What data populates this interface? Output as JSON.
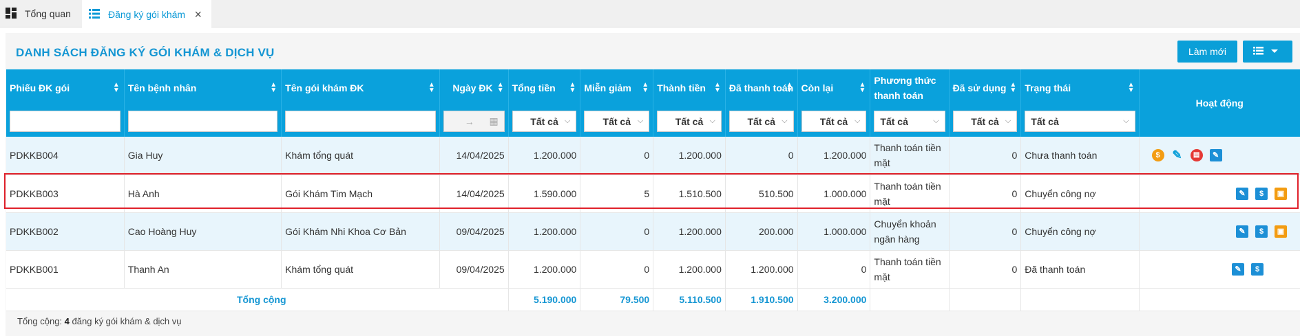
{
  "tabs": [
    {
      "label": "Tổng quan",
      "icon": "dashboard-icon"
    },
    {
      "label": "Đăng ký gói khám",
      "icon": "list-icon"
    }
  ],
  "page": {
    "title": "DANH SÁCH ĐĂNG KÝ GÓI KHÁM & DỊCH VỤ",
    "refresh_label": "Làm mới"
  },
  "table": {
    "columns": [
      "Phiếu ĐK gói",
      "Tên bệnh nhân",
      "Tên gói khám ĐK",
      "Ngày ĐK",
      "Tổng tiền",
      "Miễn giảm",
      "Thành tiền",
      "Đã thanh toán",
      "Còn lại",
      "Phương thức thanh toán",
      "Đã sử dụng",
      "Trạng thái",
      "Hoạt động"
    ],
    "filter_all": "Tất cả",
    "date_arrow": "→",
    "rows": [
      {
        "code": "PDKKB004",
        "patient": "Gia Huy",
        "package": "Khám tổng quát",
        "date": "14/04/2025",
        "total": "1.200.000",
        "discount": "0",
        "amount": "1.200.000",
        "paid": "0",
        "remaining": "1.200.000",
        "method": "Thanh toán tiền mặt",
        "used": "0",
        "status": "Chưa thanh toán"
      },
      {
        "code": "PDKKB003",
        "patient": "Hà Anh",
        "package": "Gói Khám Tim Mạch",
        "date": "14/04/2025",
        "total": "1.590.000",
        "discount": "5",
        "amount": "1.510.500",
        "paid": "510.500",
        "remaining": "1.000.000",
        "method": "Thanh toán tiền mặt",
        "used": "0",
        "status": "Chuyển công nợ"
      },
      {
        "code": "PDKKB002",
        "patient": "Cao Hoàng Huy",
        "package": "Gói Khám Nhi Khoa Cơ Bản",
        "date": "09/04/2025",
        "total": "1.200.000",
        "discount": "0",
        "amount": "1.200.000",
        "paid": "200.000",
        "remaining": "1.000.000",
        "method": "Chuyển khoản ngân hàng",
        "used": "0",
        "status": "Chuyển công nợ"
      },
      {
        "code": "PDKKB001",
        "patient": "Thanh An",
        "package": "Khám tổng quát",
        "date": "09/04/2025",
        "total": "1.200.000",
        "discount": "0",
        "amount": "1.200.000",
        "paid": "1.200.000",
        "remaining": "0",
        "method": "Thanh toán tiền mặt",
        "used": "0",
        "status": "Đã thanh toán"
      }
    ],
    "totals": {
      "label": "Tổng cộng",
      "total": "5.190.000",
      "discount": "79.500",
      "amount": "5.110.500",
      "paid": "1.910.500",
      "remaining": "3.200.000"
    }
  },
  "footer": {
    "prefix": "Tổng cộng:",
    "count": "4",
    "suffix": "đăng ký gói khám & dịch vụ"
  },
  "colors": {
    "accent": "#0aa1dc",
    "title": "#1596d3",
    "highlight": "#e0202a"
  }
}
